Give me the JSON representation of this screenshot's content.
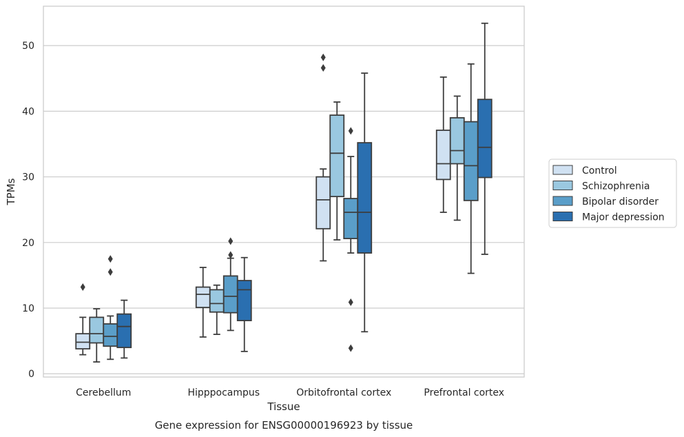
{
  "chart_data": {
    "type": "box",
    "caption": "Gene expression for ENSG00000196923 by tissue",
    "xlabel": "Tissue",
    "ylabel": "TPMs",
    "ylim": [
      -0.5,
      56
    ],
    "yticks": [
      0,
      10,
      20,
      30,
      40,
      50
    ],
    "grid": true,
    "legend_position": "right",
    "categories": [
      "Cerebellum",
      "Hipppocampus",
      "Orbitofrontal cortex",
      "Prefrontal cortex"
    ],
    "series": [
      {
        "name": "Control",
        "color": "#d0e1f2",
        "boxes": [
          {
            "whislo": 2.9,
            "q1": 3.8,
            "med": 4.8,
            "q3": 6.1,
            "whishi": 8.6,
            "fliers": [
              13.2
            ]
          },
          {
            "whislo": 5.6,
            "q1": 10.1,
            "med": 12.1,
            "q3": 13.2,
            "whishi": 16.2,
            "fliers": []
          },
          {
            "whislo": 17.2,
            "q1": 22.1,
            "med": 26.5,
            "q3": 30.0,
            "whishi": 31.2,
            "fliers": [
              46.6,
              48.2
            ]
          },
          {
            "whislo": 24.6,
            "q1": 29.6,
            "med": 32.0,
            "q3": 37.1,
            "whishi": 45.2,
            "fliers": []
          }
        ]
      },
      {
        "name": "Schizophrenia",
        "color": "#9ac8e0",
        "boxes": [
          {
            "whislo": 1.8,
            "q1": 4.7,
            "med": 6.1,
            "q3": 8.6,
            "whishi": 9.9,
            "fliers": []
          },
          {
            "whislo": 6.0,
            "q1": 9.4,
            "med": 10.7,
            "q3": 12.8,
            "whishi": 13.5,
            "fliers": []
          },
          {
            "whislo": 20.4,
            "q1": 27.0,
            "med": 33.6,
            "q3": 39.4,
            "whishi": 41.4,
            "fliers": []
          },
          {
            "whislo": 23.4,
            "q1": 32.0,
            "med": 34.0,
            "q3": 39.0,
            "whishi": 42.3,
            "fliers": []
          }
        ]
      },
      {
        "name": "Bipolar disorder",
        "color": "#5a9ec9",
        "boxes": [
          {
            "whislo": 2.2,
            "q1": 4.2,
            "med": 5.7,
            "q3": 7.6,
            "whishi": 8.8,
            "fliers": [
              15.5,
              17.5
            ]
          },
          {
            "whislo": 6.6,
            "q1": 9.3,
            "med": 11.8,
            "q3": 14.9,
            "whishi": 17.6,
            "fliers": [
              18.1,
              20.2
            ]
          },
          {
            "whislo": 18.4,
            "q1": 20.6,
            "med": 24.6,
            "q3": 26.7,
            "whishi": 33.1,
            "fliers": [
              3.9,
              10.9,
              37.0
            ]
          },
          {
            "whislo": 15.3,
            "q1": 26.4,
            "med": 31.7,
            "q3": 38.4,
            "whishi": 47.2,
            "fliers": []
          }
        ]
      },
      {
        "name": "Major depression",
        "color": "#2a6fb0",
        "boxes": [
          {
            "whislo": 2.4,
            "q1": 4.0,
            "med": 7.2,
            "q3": 9.1,
            "whishi": 11.2,
            "fliers": []
          },
          {
            "whislo": 3.4,
            "q1": 8.1,
            "med": 12.8,
            "q3": 14.2,
            "whishi": 17.7,
            "fliers": []
          },
          {
            "whislo": 6.4,
            "q1": 18.4,
            "med": 24.6,
            "q3": 35.2,
            "whishi": 45.8,
            "fliers": []
          },
          {
            "whislo": 18.2,
            "q1": 29.9,
            "med": 34.5,
            "q3": 41.8,
            "whishi": 53.4,
            "fliers": []
          }
        ]
      }
    ]
  }
}
